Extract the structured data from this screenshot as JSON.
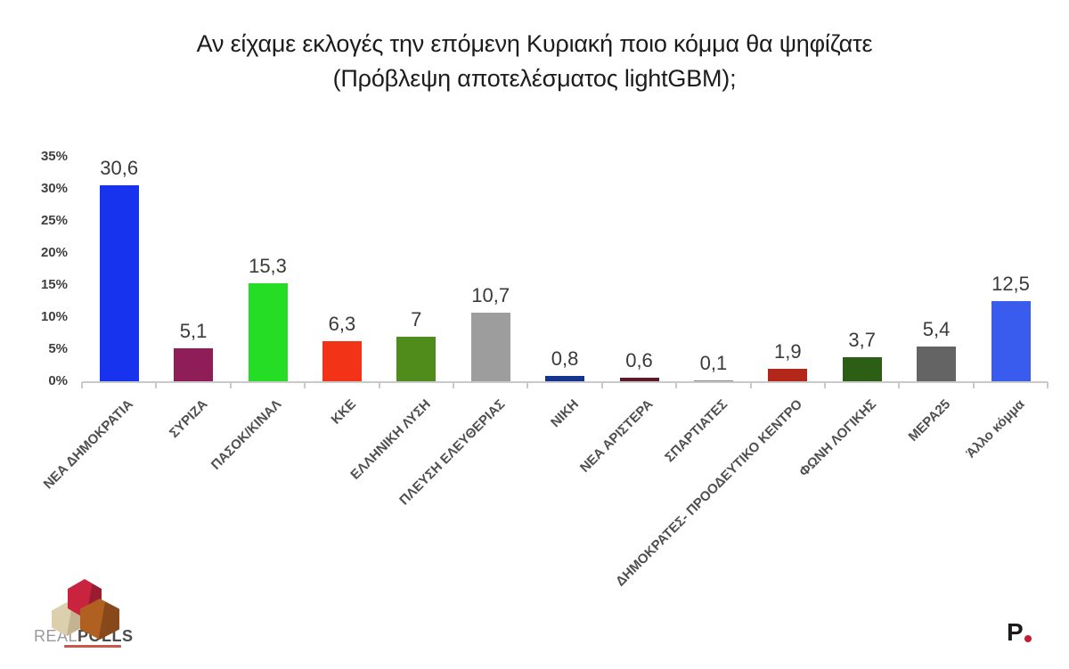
{
  "title": {
    "line1": "Αν είχαμε εκλογές την επόμενη Κυριακή ποιο κόμμα θα ψηφίζατε",
    "line2": "(Πρόβλεψη αποτελέσματος lightGBM);"
  },
  "chart_data": {
    "type": "bar",
    "title": "Αν είχαμε εκλογές την επόμενη Κυριακή ποιο κόμμα θα ψηφίζατε (Πρόβλεψη αποτελέσματος lightGBM);",
    "categories": [
      "ΝΕΑ ΔΗΜΟΚΡΑΤΙΑ",
      "ΣΥΡΙΖΑ",
      "ΠΑΣΟΚ/ΚΙΝΑΛ",
      "ΚΚΕ",
      "ΕΛΛΗΝΙΚΗ ΛΥΣΗ",
      "ΠΛΕΥΣΗ ΕΛΕΥΘΕΡΙΑΣ",
      "ΝΙΚΗ",
      "ΝΕΑ ΑΡΙΣΤΕΡΑ",
      "ΣΠΑΡΤΙΑΤΕΣ",
      "ΔΗΜΟΚΡΑΤΕΣ- ΠΡΟΟΔΕΥΤΙΚΟ ΚΕΝΤΡΟ",
      "ΦΩΝΗ ΛΟΓΙΚΗΣ",
      "ΜΕΡΑ25",
      "Άλλο κόμμα"
    ],
    "values": [
      30.6,
      5.1,
      15.3,
      6.3,
      7,
      10.7,
      0.8,
      0.6,
      0.1,
      1.9,
      3.7,
      5.4,
      12.5
    ],
    "value_labels": [
      "30,6",
      "5,1",
      "15,3",
      "6,3",
      "7",
      "10,7",
      "0,8",
      "0,6",
      "0,1",
      "1,9",
      "3,7",
      "5,4",
      "12,5"
    ],
    "bar_colors": [
      "#1733ee",
      "#8f1d58",
      "#24dd24",
      "#f23317",
      "#4f8c1c",
      "#9d9d9d",
      "#16338e",
      "#5c1a28",
      "#8a8a96",
      "#b3271a",
      "#2c5f15",
      "#646464",
      "#3a5cee"
    ],
    "ytick_labels": [
      "0%",
      "5%",
      "10%",
      "15%",
      "20%",
      "25%",
      "30%",
      "35%"
    ],
    "ylim": [
      0,
      35
    ],
    "ytick_step": 5,
    "xlabel": "",
    "ylabel": "",
    "grid": false,
    "legend": "none",
    "decimal_separator": ","
  },
  "branding": {
    "realpolls_real": "REAL",
    "realpolls_polls": "POLLS",
    "p_logo_letter": "P"
  },
  "colors": {
    "axis": "#c9c9c9",
    "tick_label": "#3f3f3f",
    "value_label": "#3a3a3a",
    "category_label": "#4f4f4f",
    "logo_red": "#c92340",
    "logo_tan": "#dccfae",
    "logo_brown": "#b06020",
    "p_dot_red": "#c11f2e"
  }
}
